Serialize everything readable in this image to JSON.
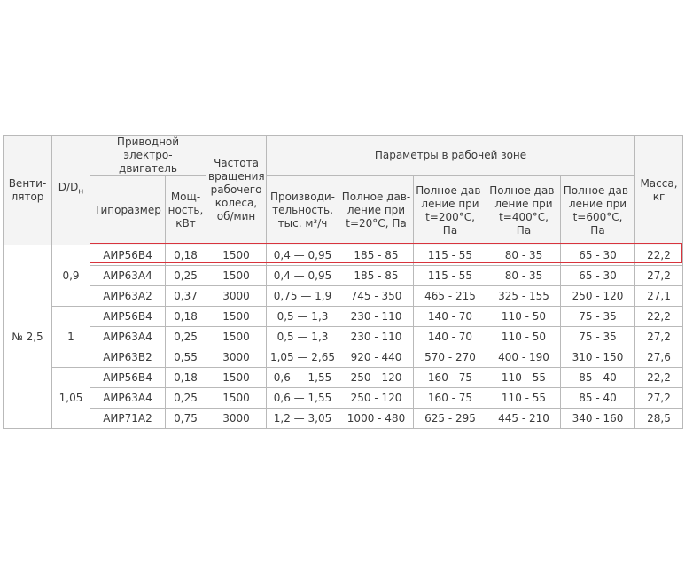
{
  "table": {
    "header": {
      "fan": "Венти-\nлятор",
      "ratio": {
        "main": "D/D",
        "sub": "н"
      },
      "drive": "Приводной электро-\nдвигатель",
      "type": "Типоразмер",
      "power": "Мощ-\nность,\nкВт",
      "freq": "Частота\nвращения\nрабочего\nколеса,\nоб/мин",
      "params": "Параметры в рабочей зоне",
      "flow": "Производи-\nтельность,\nтыс. м³/ч",
      "p20": "Полное дав-\nление при\nt=20°C, Па",
      "p200": "Полное дав-\nление при\nt=200°C,\nПа",
      "p400": "Полное дав-\nление при\nt=400°C,\nПа",
      "p600": "Полное дав-\nление при\nt=600°C,\nПа",
      "mass": "Масса,\nкг"
    },
    "fan": "№ 2,5",
    "groups": [
      {
        "ratio": "0,9",
        "rows": [
          [
            "АИР56В4",
            "0,18",
            "1500",
            "0,4 — 0,95",
            "185 - 85",
            "115 - 55",
            "80 - 35",
            "65 - 30",
            "22,2"
          ],
          [
            "АИР63А4",
            "0,25",
            "1500",
            "0,4 — 0,95",
            "185 - 85",
            "115 - 55",
            "80 - 35",
            "65 - 30",
            "27,2"
          ],
          [
            "АИР63А2",
            "0,37",
            "3000",
            "0,75 — 1,9",
            "745 - 350",
            "465 - 215",
            "325 - 155",
            "250 - 120",
            "27,1"
          ]
        ]
      },
      {
        "ratio": "1",
        "rows": [
          [
            "АИР56В4",
            "0,18",
            "1500",
            "0,5 — 1,3",
            "230 - 110",
            "140 - 70",
            "110 - 50",
            "75 - 35",
            "22,2"
          ],
          [
            "АИР63А4",
            "0,25",
            "1500",
            "0,5 — 1,3",
            "230 - 110",
            "140 - 70",
            "110 - 50",
            "75 - 35",
            "27,2"
          ],
          [
            "АИР63В2",
            "0,55",
            "3000",
            "1,05 — 2,65",
            "920 - 440",
            "570 - 270",
            "400 - 190",
            "310 - 150",
            "27,6"
          ]
        ]
      },
      {
        "ratio": "1,05",
        "rows": [
          [
            "АИР56В4",
            "0,18",
            "1500",
            "0,6 — 1,55",
            "250 - 120",
            "160 - 75",
            "110 - 55",
            "85 - 40",
            "22,2"
          ],
          [
            "АИР63А4",
            "0,25",
            "1500",
            "0,6 — 1,55",
            "250 - 120",
            "160 - 75",
            "110 - 55",
            "85 - 40",
            "27,2"
          ],
          [
            "АИР71А2",
            "0,75",
            "3000",
            "1,2 — 3,05",
            "1000 - 480",
            "625 - 295",
            "445 - 210",
            "340 - 160",
            "28,5"
          ]
        ]
      }
    ]
  }
}
